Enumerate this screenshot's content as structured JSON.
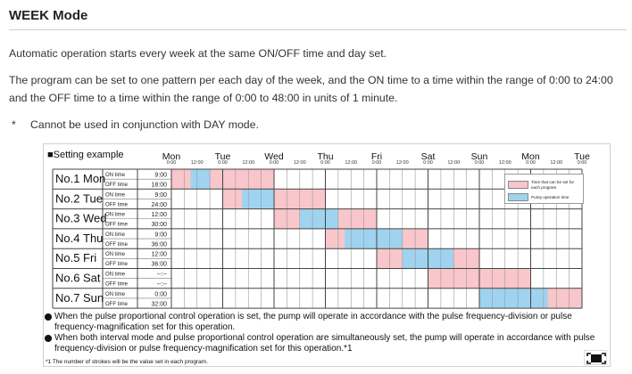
{
  "page": {
    "heading": "WEEK Mode",
    "paragraph1": "Automatic operation starts every week at the same ON/OFF time and day set.",
    "paragraph2": "The program can be set to one pattern per each day of the week, and the ON time to a time within the range of 0:00 to 24:00 and the OFF time to a time within the range of 0:00 to 48:00 in units of 1 minute.",
    "note_marker": "*",
    "note_text": "Cannot be used in conjunction with DAY mode."
  },
  "figure": {
    "title": "■Setting example",
    "days": [
      "Mon",
      "Tue",
      "Wed",
      "Thu",
      "Fri",
      "Sat",
      "Sun",
      "Mon",
      "Tue"
    ],
    "hour_labels": [
      "0:00",
      "12:00"
    ],
    "on_label": "ON time",
    "off_label": "OFF time",
    "programs": [
      {
        "no": "No.1",
        "day": "Mon",
        "on": "9:00",
        "off": "18:00",
        "settable": [
          [
            0,
            48
          ]
        ],
        "operation": [
          [
            9,
            18
          ]
        ]
      },
      {
        "no": "No.2",
        "day": "Tue",
        "on": "9:00",
        "off": "24:00",
        "settable": [
          [
            24,
            72
          ]
        ],
        "operation": [
          [
            33,
            48
          ]
        ]
      },
      {
        "no": "No.3",
        "day": "Wed",
        "on": "12:00",
        "off": "30:00",
        "settable": [
          [
            48,
            96
          ]
        ],
        "operation": [
          [
            60,
            78
          ]
        ]
      },
      {
        "no": "No.4",
        "day": "Thu",
        "on": "9:00",
        "off": "36:00",
        "settable": [
          [
            72,
            120
          ]
        ],
        "operation": [
          [
            81,
            108
          ]
        ]
      },
      {
        "no": "No.5",
        "day": "Fri",
        "on": "12:00",
        "off": "36:00",
        "settable": [
          [
            96,
            144
          ]
        ],
        "operation": [
          [
            108,
            132
          ]
        ]
      },
      {
        "no": "No.6",
        "day": "Sat",
        "on": "--:--",
        "off": "--:--",
        "settable": [
          [
            120,
            168
          ]
        ],
        "operation": []
      },
      {
        "no": "No.7",
        "day": "Sun",
        "on": "0:00",
        "off": "32:00",
        "settable": [
          [
            144,
            192
          ]
        ],
        "operation": [
          [
            144,
            176
          ]
        ]
      }
    ],
    "legend": {
      "settable_label": "Time that can be set for each program",
      "operation_label": "Pump operation time",
      "settable_color": "#f8c6cb",
      "operation_color": "#9fd3ef"
    },
    "bullets": [
      "When the pulse proportional control operation is set, the pump will operate in accordance with the pulse frequency-division or pulse frequency-magnification set for this operation.",
      "When both interval mode and pulse proportional control operation are simultaneously set, the pump will operate in accordance with pulse frequency-division or pulse frequency-magnification set for this operation.*1"
    ],
    "footnote": "*1 The number of strokes will be the value set in each program."
  },
  "controls": {
    "fullscreen_icon": "fullscreen-icon"
  }
}
